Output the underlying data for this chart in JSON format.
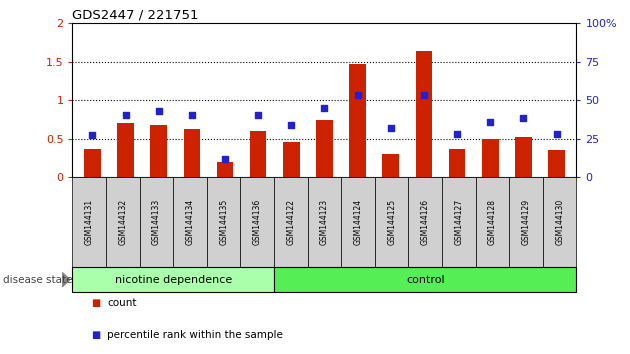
{
  "title": "GDS2447 / 221751",
  "categories": [
    "GSM144131",
    "GSM144132",
    "GSM144133",
    "GSM144134",
    "GSM144135",
    "GSM144136",
    "GSM144122",
    "GSM144123",
    "GSM144124",
    "GSM144125",
    "GSM144126",
    "GSM144127",
    "GSM144128",
    "GSM144129",
    "GSM144130"
  ],
  "count_values": [
    0.36,
    0.7,
    0.67,
    0.62,
    0.19,
    0.6,
    0.46,
    0.74,
    1.47,
    0.3,
    1.63,
    0.37,
    0.5,
    0.52,
    0.35
  ],
  "percentile_values": [
    27,
    40,
    43,
    40,
    12,
    40,
    34,
    45,
    53,
    32,
    53,
    28,
    36,
    38,
    28
  ],
  "nd_count": 6,
  "ctrl_count": 9,
  "group_labels": [
    "nicotine dependence",
    "control"
  ],
  "nd_color": "#aaffaa",
  "ctrl_color": "#55ee55",
  "bar_color": "#cc2200",
  "dot_color": "#2222cc",
  "ylim_left": [
    0,
    2
  ],
  "ylim_right": [
    0,
    100
  ],
  "yticks_left": [
    0,
    0.5,
    1.0,
    1.5,
    2.0
  ],
  "ytick_labels_left": [
    "0",
    "0.5",
    "1",
    "1.5",
    "2"
  ],
  "yticks_right": [
    0,
    25,
    50,
    75,
    100
  ],
  "ytick_labels_right": [
    "0",
    "25",
    "50",
    "75",
    "100%"
  ],
  "legend_count_label": "count",
  "legend_pct_label": "percentile rank within the sample",
  "disease_state_label": "disease state"
}
